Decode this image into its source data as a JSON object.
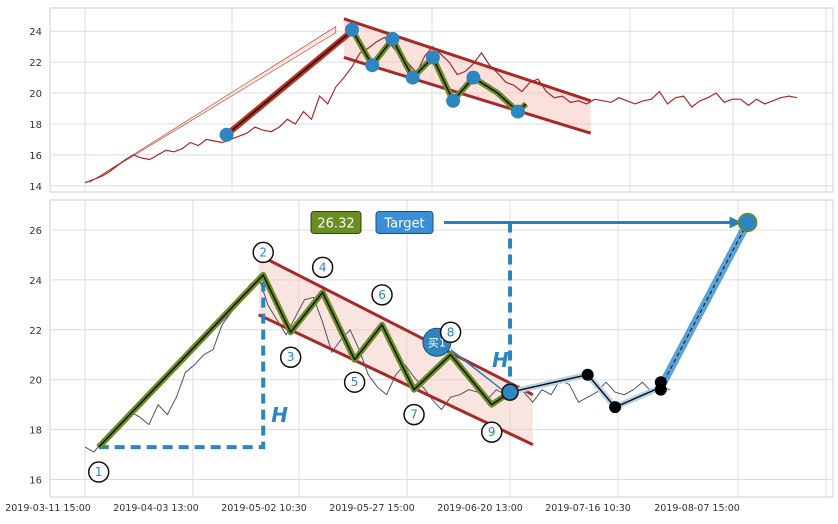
{
  "chart_data": [
    {
      "type": "line",
      "panel": "top",
      "yticks": [
        14,
        16,
        18,
        20,
        22,
        24
      ],
      "ylim": [
        13.6,
        25.5
      ],
      "grid": true,
      "series": [
        {
          "values": [
            [
              0,
              14.2
            ],
            [
              2,
              14.4
            ],
            [
              4,
              14.6
            ],
            [
              6,
              14.9
            ],
            [
              8,
              15.3
            ],
            [
              10,
              15.7
            ],
            [
              12,
              16.0
            ],
            [
              14,
              15.8
            ],
            [
              16,
              15.7
            ],
            [
              18,
              16.0
            ],
            [
              20,
              16.3
            ],
            [
              22,
              16.2
            ],
            [
              24,
              16.4
            ],
            [
              26,
              16.8
            ],
            [
              28,
              16.6
            ],
            [
              30,
              17.0
            ],
            [
              32,
              16.9
            ],
            [
              34,
              16.8
            ],
            [
              36,
              17.0
            ],
            [
              38,
              17.2
            ],
            [
              40,
              17.4
            ],
            [
              42,
              17.8
            ],
            [
              44,
              17.6
            ],
            [
              46,
              17.5
            ],
            [
              48,
              17.8
            ],
            [
              50,
              18.3
            ],
            [
              52,
              18.0
            ],
            [
              54,
              18.8
            ],
            [
              56,
              18.3
            ],
            [
              58,
              19.8
            ],
            [
              60,
              19.3
            ],
            [
              62,
              20.4
            ],
            [
              64,
              21.0
            ],
            [
              66,
              21.7
            ],
            [
              68,
              22.6
            ],
            [
              70,
              22.9
            ],
            [
              72,
              23.3
            ],
            [
              74,
              23.6
            ],
            [
              76,
              23.0
            ],
            [
              78,
              22.4
            ],
            [
              80,
              21.9
            ],
            [
              82,
              21.3
            ],
            [
              84,
              22.4
            ],
            [
              86,
              23.0
            ],
            [
              88,
              22.5
            ],
            [
              90,
              22.0
            ],
            [
              92,
              21.2
            ],
            [
              94,
              21.4
            ],
            [
              96,
              21.9
            ],
            [
              98,
              22.6
            ],
            [
              100,
              21.8
            ],
            [
              102,
              21.3
            ],
            [
              104,
              20.7
            ],
            [
              106,
              20.5
            ],
            [
              108,
              20.1
            ],
            [
              110,
              20.7
            ],
            [
              112,
              20.9
            ],
            [
              114,
              20.1
            ],
            [
              116,
              19.7
            ],
            [
              118,
              19.8
            ],
            [
              120,
              19.4
            ],
            [
              122,
              19.5
            ],
            [
              124,
              19.3
            ],
            [
              126,
              19.6
            ],
            [
              128,
              19.5
            ],
            [
              130,
              19.4
            ],
            [
              132,
              19.7
            ],
            [
              134,
              19.5
            ],
            [
              136,
              19.3
            ],
            [
              138,
              19.5
            ],
            [
              140,
              19.6
            ],
            [
              142,
              20.1
            ],
            [
              144,
              19.3
            ],
            [
              146,
              19.7
            ],
            [
              148,
              19.8
            ],
            [
              150,
              19.1
            ],
            [
              152,
              19.5
            ],
            [
              154,
              19.7
            ],
            [
              156,
              20.0
            ],
            [
              158,
              19.4
            ],
            [
              160,
              19.6
            ],
            [
              162,
              19.6
            ],
            [
              164,
              19.2
            ],
            [
              166,
              19.6
            ],
            [
              168,
              19.3
            ],
            [
              170,
              19.5
            ],
            [
              172,
              19.7
            ],
            [
              174,
              19.8
            ],
            [
              176,
              19.7
            ]
          ]
        }
      ],
      "channel_upper": [
        [
          64,
          24.8
        ],
        [
          125,
          19.5
        ]
      ],
      "channel_lower": [
        [
          64,
          22.3
        ],
        [
          125,
          17.4
        ]
      ],
      "rise_line": [
        [
          35,
          17.3
        ],
        [
          65,
          23.8
        ]
      ],
      "pivot_points": [
        [
          66,
          24.1
        ],
        [
          71,
          21.8
        ],
        [
          76,
          23.5
        ],
        [
          81,
          21.0
        ],
        [
          86,
          22.3
        ],
        [
          91,
          19.5
        ],
        [
          96,
          21.0
        ],
        [
          107,
          18.8
        ]
      ],
      "wave_path": [
        [
          66,
          24.1
        ],
        [
          71,
          21.8
        ],
        [
          76,
          23.5
        ],
        [
          81,
          21.0
        ],
        [
          86,
          22.3
        ],
        [
          91,
          19.5
        ],
        [
          96,
          21.0
        ],
        [
          102,
          20.0
        ],
        [
          107,
          18.8
        ],
        [
          109,
          19.3
        ]
      ]
    },
    {
      "type": "line",
      "panel": "bottom",
      "yticks": [
        16,
        18,
        20,
        22,
        24,
        26
      ],
      "ylim": [
        15.3,
        27.2
      ],
      "grid": true,
      "xticks": [
        "2019-03-11 15:00",
        "2019-04-03 13:00",
        "2019-05-02 10:30",
        "2019-05-27 15:00",
        "2019-06-20 13:00",
        "2019-07-16 10:30",
        "2019-08-07 15:00"
      ],
      "series": [
        {
          "values": [
            [
              0,
              17.3
            ],
            [
              2,
              17.1
            ],
            [
              4,
              17.6
            ],
            [
              6,
              17.8
            ],
            [
              8,
              18.3
            ],
            [
              10,
              18.7
            ],
            [
              12,
              18.5
            ],
            [
              14,
              18.2
            ],
            [
              16,
              19.0
            ],
            [
              18,
              18.6
            ],
            [
              20,
              19.3
            ],
            [
              22,
              20.3
            ],
            [
              24,
              20.6
            ],
            [
              26,
              21.0
            ],
            [
              28,
              21.2
            ],
            [
              30,
              22.2
            ],
            [
              32,
              22.7
            ],
            [
              34,
              23.2
            ],
            [
              36,
              23.8
            ],
            [
              38,
              24.1
            ],
            [
              40,
              23.0
            ],
            [
              42,
              22.4
            ],
            [
              44,
              21.8
            ],
            [
              46,
              22.5
            ],
            [
              48,
              23.2
            ],
            [
              50,
              23.3
            ],
            [
              52,
              22.3
            ],
            [
              54,
              21.1
            ],
            [
              56,
              21.6
            ],
            [
              58,
              22.0
            ],
            [
              60,
              21.2
            ],
            [
              62,
              20.2
            ],
            [
              64,
              19.7
            ],
            [
              66,
              19.4
            ],
            [
              68,
              20.2
            ],
            [
              70,
              20.6
            ],
            [
              72,
              20.1
            ],
            [
              74,
              19.7
            ],
            [
              76,
              19.2
            ],
            [
              78,
              18.8
            ],
            [
              80,
              19.3
            ],
            [
              82,
              19.4
            ],
            [
              84,
              19.6
            ],
            [
              86,
              19.5
            ],
            [
              88,
              19.2
            ],
            [
              90,
              19.6
            ],
            [
              92,
              19.4
            ],
            [
              94,
              19.7
            ],
            [
              96,
              19.5
            ],
            [
              98,
              19.1
            ],
            [
              100,
              19.6
            ],
            [
              102,
              19.4
            ],
            [
              104,
              20.0
            ],
            [
              106,
              19.8
            ],
            [
              108,
              19.1
            ],
            [
              110,
              19.3
            ],
            [
              112,
              19.5
            ],
            [
              114,
              19.9
            ],
            [
              116,
              19.5
            ],
            [
              118,
              19.4
            ],
            [
              120,
              19.6
            ],
            [
              122,
              19.9
            ],
            [
              124,
              19.5
            ],
            [
              126,
              19.7
            ],
            [
              128,
              19.6
            ]
          ]
        }
      ],
      "channel_upper": [
        [
          38,
          25.0
        ],
        [
          98,
          19.4
        ]
      ],
      "channel_lower": [
        [
          38,
          22.6
        ],
        [
          98,
          17.4
        ]
      ],
      "rise_line": [
        [
          3,
          17.3
        ],
        [
          39,
          24.2
        ]
      ],
      "wave_path": [
        [
          3,
          17.3
        ],
        [
          39,
          24.2
        ],
        [
          45,
          21.9
        ],
        [
          52,
          23.5
        ],
        [
          59,
          20.8
        ],
        [
          65,
          22.2
        ],
        [
          72,
          19.6
        ],
        [
          80,
          21.0
        ],
        [
          89,
          19.0
        ],
        [
          93,
          19.5
        ]
      ],
      "extension_path": [
        [
          93,
          19.5
        ],
        [
          110,
          20.2
        ],
        [
          116,
          18.9
        ],
        [
          126,
          19.7
        ],
        [
          145,
          26.3
        ]
      ],
      "black_points": [
        [
          110,
          20.2
        ],
        [
          116,
          18.9
        ],
        [
          126,
          19.9
        ],
        [
          126,
          19.6
        ]
      ],
      "wave_labels": [
        {
          "text": "1",
          "x": 3,
          "y": 16.3
        },
        {
          "text": "2",
          "x": 39,
          "y": 25.1
        },
        {
          "text": "3",
          "x": 45,
          "y": 20.9
        },
        {
          "text": "4",
          "x": 52,
          "y": 24.5
        },
        {
          "text": "5",
          "x": 59,
          "y": 19.9
        },
        {
          "text": "6",
          "x": 65,
          "y": 23.4
        },
        {
          "text": "7",
          "x": 72,
          "y": 18.6
        },
        {
          "text": "8",
          "x": 80,
          "y": 21.9
        },
        {
          "text": "9",
          "x": 89,
          "y": 17.9
        }
      ],
      "buy_marker": {
        "text": "买1",
        "x": 77,
        "y": 21.5
      },
      "target_label": "Target",
      "target_value": "26.32",
      "target_point": [
        145,
        26.3
      ],
      "height_label": "H"
    }
  ],
  "colors": {
    "top_price": "#a52a2a",
    "bottom_price": "#4b5563",
    "trend_red": "#c0301e",
    "channel": "#a52a2a",
    "wave_green": "#6b8e23",
    "pivot_blue": "#2e86c1",
    "value_badge_green": "#6b8e23",
    "target_blue": "#3a8fd6",
    "dashed_blue": "#2a86c2",
    "black": "#000000"
  }
}
